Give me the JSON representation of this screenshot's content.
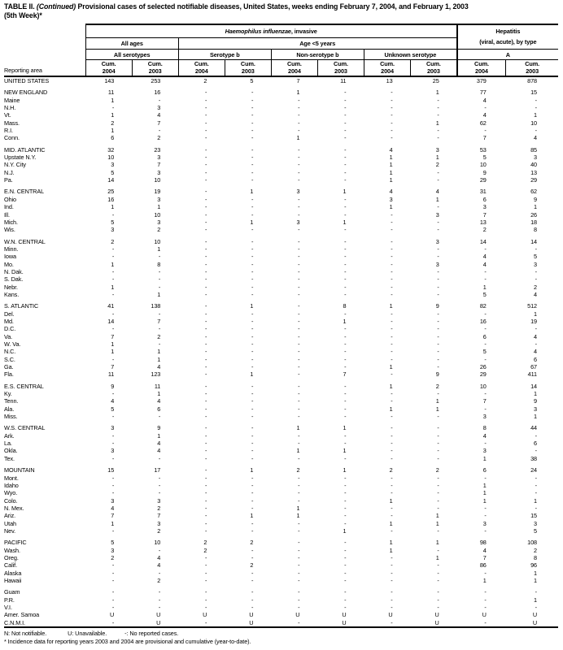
{
  "title": {
    "part1": "TABLE II. ",
    "part2": "(Continued)",
    "part3": " Provisional cases of selected notifiable diseases, United States, weeks ending February 7, 2004, and February 1, 2003",
    "line2": "(5th Week)*"
  },
  "header": {
    "reporting_area": "Reporting area",
    "group1_italic": "Haemophilus influenzae",
    "group1_rest": ", invasive",
    "hepatitis_line1": "Hepatitis",
    "hepatitis_line2": "(viral, acute), by type",
    "all_ages": "All ages",
    "age_under5": "Age <5 years",
    "all_serotypes": "All serotypes",
    "serotype_b": "Serotype b",
    "non_serotype_b": "Non-serotype b",
    "unknown_serotype": "Unknown serotype",
    "hep_a": "A",
    "cum": "Cum.",
    "year1": "2004",
    "year2": "2003"
  },
  "sections": [
    {
      "rows": [
        {
          "label": "UNITED STATES",
          "values": [
            "143",
            "253",
            "2",
            "5",
            "7",
            "11",
            "13",
            "25",
            "379",
            "878"
          ]
        }
      ]
    },
    {
      "rows": [
        {
          "label": "NEW ENGLAND",
          "values": [
            "11",
            "16",
            "-",
            "-",
            "1",
            "-",
            "-",
            "1",
            "77",
            "15"
          ]
        },
        {
          "label": "Maine",
          "values": [
            "1",
            "-",
            "-",
            "-",
            "-",
            "-",
            "-",
            "-",
            "4",
            "-"
          ]
        },
        {
          "label": "N.H.",
          "values": [
            "-",
            "3",
            "-",
            "-",
            "-",
            "-",
            "-",
            "-",
            "-",
            "-"
          ]
        },
        {
          "label": "Vt.",
          "values": [
            "1",
            "4",
            "-",
            "-",
            "-",
            "-",
            "-",
            "-",
            "4",
            "1"
          ]
        },
        {
          "label": "Mass.",
          "values": [
            "2",
            "7",
            "-",
            "-",
            "-",
            "-",
            "-",
            "1",
            "62",
            "10"
          ]
        },
        {
          "label": "R.I.",
          "values": [
            "1",
            "-",
            "-",
            "-",
            "-",
            "-",
            "-",
            "-",
            "-",
            "-"
          ]
        },
        {
          "label": "Conn.",
          "values": [
            "6",
            "2",
            "-",
            "-",
            "1",
            "-",
            "-",
            "-",
            "7",
            "4"
          ]
        }
      ]
    },
    {
      "rows": [
        {
          "label": "MID. ATLANTIC",
          "values": [
            "32",
            "23",
            "-",
            "-",
            "-",
            "-",
            "4",
            "3",
            "53",
            "85"
          ]
        },
        {
          "label": "Upstate N.Y.",
          "values": [
            "10",
            "3",
            "-",
            "-",
            "-",
            "-",
            "1",
            "1",
            "5",
            "3"
          ]
        },
        {
          "label": "N.Y. City",
          "values": [
            "3",
            "7",
            "-",
            "-",
            "-",
            "-",
            "1",
            "2",
            "10",
            "40"
          ]
        },
        {
          "label": "N.J.",
          "values": [
            "5",
            "3",
            "-",
            "-",
            "-",
            "-",
            "1",
            "-",
            "9",
            "13"
          ]
        },
        {
          "label": "Pa.",
          "values": [
            "14",
            "10",
            "-",
            "-",
            "-",
            "-",
            "1",
            "-",
            "29",
            "29"
          ]
        }
      ]
    },
    {
      "rows": [
        {
          "label": "E.N. CENTRAL",
          "values": [
            "25",
            "19",
            "-",
            "1",
            "3",
            "1",
            "4",
            "4",
            "31",
            "62"
          ]
        },
        {
          "label": "Ohio",
          "values": [
            "16",
            "3",
            "-",
            "-",
            "-",
            "-",
            "3",
            "1",
            "6",
            "9"
          ]
        },
        {
          "label": "Ind.",
          "values": [
            "1",
            "1",
            "-",
            "-",
            "-",
            "-",
            "1",
            "-",
            "3",
            "1"
          ]
        },
        {
          "label": "Ill.",
          "values": [
            "-",
            "10",
            "-",
            "-",
            "-",
            "-",
            "-",
            "3",
            "7",
            "26"
          ]
        },
        {
          "label": "Mich.",
          "values": [
            "5",
            "3",
            "-",
            "1",
            "3",
            "1",
            "-",
            "-",
            "13",
            "18"
          ]
        },
        {
          "label": "Wis.",
          "values": [
            "3",
            "2",
            "-",
            "-",
            "-",
            "-",
            "-",
            "-",
            "2",
            "8"
          ]
        }
      ]
    },
    {
      "rows": [
        {
          "label": "W.N. CENTRAL",
          "values": [
            "2",
            "10",
            "-",
            "-",
            "-",
            "-",
            "-",
            "3",
            "14",
            "14"
          ]
        },
        {
          "label": "Minn.",
          "values": [
            "-",
            "1",
            "-",
            "-",
            "-",
            "-",
            "-",
            "-",
            "-",
            "-"
          ]
        },
        {
          "label": "Iowa",
          "values": [
            "-",
            "-",
            "-",
            "-",
            "-",
            "-",
            "-",
            "-",
            "4",
            "5"
          ]
        },
        {
          "label": "Mo.",
          "values": [
            "1",
            "8",
            "-",
            "-",
            "-",
            "-",
            "-",
            "3",
            "4",
            "3"
          ]
        },
        {
          "label": "N. Dak.",
          "values": [
            "-",
            "-",
            "-",
            "-",
            "-",
            "-",
            "-",
            "-",
            "-",
            "-"
          ]
        },
        {
          "label": "S. Dak.",
          "values": [
            "-",
            "-",
            "-",
            "-",
            "-",
            "-",
            "-",
            "-",
            "-",
            "-"
          ]
        },
        {
          "label": "Nebr.",
          "values": [
            "1",
            "-",
            "-",
            "-",
            "-",
            "-",
            "-",
            "-",
            "1",
            "2"
          ]
        },
        {
          "label": "Kans.",
          "values": [
            "-",
            "1",
            "-",
            "-",
            "-",
            "-",
            "-",
            "-",
            "5",
            "4"
          ]
        }
      ]
    },
    {
      "rows": [
        {
          "label": "S. ATLANTIC",
          "values": [
            "41",
            "138",
            "-",
            "1",
            "-",
            "8",
            "1",
            "9",
            "82",
            "512"
          ]
        },
        {
          "label": "Del.",
          "values": [
            "-",
            "-",
            "-",
            "-",
            "-",
            "-",
            "-",
            "-",
            "-",
            "1"
          ]
        },
        {
          "label": "Md.",
          "values": [
            "14",
            "7",
            "-",
            "-",
            "-",
            "1",
            "-",
            "-",
            "16",
            "19"
          ]
        },
        {
          "label": "D.C.",
          "values": [
            "-",
            "-",
            "-",
            "-",
            "-",
            "-",
            "-",
            "-",
            "-",
            "-"
          ]
        },
        {
          "label": "Va.",
          "values": [
            "7",
            "2",
            "-",
            "-",
            "-",
            "-",
            "-",
            "-",
            "6",
            "4"
          ]
        },
        {
          "label": "W. Va.",
          "values": [
            "1",
            "-",
            "-",
            "-",
            "-",
            "-",
            "-",
            "-",
            "-",
            "-"
          ]
        },
        {
          "label": "N.C.",
          "values": [
            "1",
            "1",
            "-",
            "-",
            "-",
            "-",
            "-",
            "-",
            "5",
            "4"
          ]
        },
        {
          "label": "S.C.",
          "values": [
            "-",
            "1",
            "-",
            "-",
            "-",
            "-",
            "-",
            "-",
            "-",
            "6"
          ]
        },
        {
          "label": "Ga.",
          "values": [
            "7",
            "4",
            "-",
            "-",
            "-",
            "-",
            "1",
            "-",
            "26",
            "67"
          ]
        },
        {
          "label": "Fla.",
          "values": [
            "11",
            "123",
            "-",
            "1",
            "-",
            "7",
            "-",
            "9",
            "29",
            "411"
          ]
        }
      ]
    },
    {
      "rows": [
        {
          "label": "E.S. CENTRAL",
          "values": [
            "9",
            "11",
            "-",
            "-",
            "-",
            "-",
            "1",
            "2",
            "10",
            "14"
          ]
        },
        {
          "label": "Ky.",
          "values": [
            "-",
            "1",
            "-",
            "-",
            "-",
            "-",
            "-",
            "-",
            "-",
            "1"
          ]
        },
        {
          "label": "Tenn.",
          "values": [
            "4",
            "4",
            "-",
            "-",
            "-",
            "-",
            "-",
            "1",
            "7",
            "9"
          ]
        },
        {
          "label": "Ala.",
          "values": [
            "5",
            "6",
            "-",
            "-",
            "-",
            "-",
            "1",
            "1",
            "-",
            "3"
          ]
        },
        {
          "label": "Miss.",
          "values": [
            "-",
            "-",
            "-",
            "-",
            "-",
            "-",
            "-",
            "-",
            "3",
            "1"
          ]
        }
      ]
    },
    {
      "rows": [
        {
          "label": "W.S. CENTRAL",
          "values": [
            "3",
            "9",
            "-",
            "-",
            "1",
            "1",
            "-",
            "-",
            "8",
            "44"
          ]
        },
        {
          "label": "Ark.",
          "values": [
            "-",
            "1",
            "-",
            "-",
            "-",
            "-",
            "-",
            "-",
            "4",
            "-"
          ]
        },
        {
          "label": "La.",
          "values": [
            "-",
            "4",
            "-",
            "-",
            "-",
            "-",
            "-",
            "-",
            "-",
            "6"
          ]
        },
        {
          "label": "Okla.",
          "values": [
            "3",
            "4",
            "-",
            "-",
            "1",
            "1",
            "-",
            "-",
            "3",
            "-"
          ]
        },
        {
          "label": "Tex.",
          "values": [
            "-",
            "-",
            "-",
            "-",
            "-",
            "-",
            "-",
            "-",
            "1",
            "38"
          ]
        }
      ]
    },
    {
      "rows": [
        {
          "label": "MOUNTAIN",
          "values": [
            "15",
            "17",
            "-",
            "1",
            "2",
            "1",
            "2",
            "2",
            "6",
            "24"
          ]
        },
        {
          "label": "Mont.",
          "values": [
            "-",
            "-",
            "-",
            "-",
            "-",
            "-",
            "-",
            "-",
            "-",
            "-"
          ]
        },
        {
          "label": "Idaho",
          "values": [
            "-",
            "-",
            "-",
            "-",
            "-",
            "-",
            "-",
            "-",
            "1",
            "-"
          ]
        },
        {
          "label": "Wyo.",
          "values": [
            "-",
            "-",
            "-",
            "-",
            "-",
            "-",
            "-",
            "-",
            "1",
            "-"
          ]
        },
        {
          "label": "Colo.",
          "values": [
            "3",
            "3",
            "-",
            "-",
            "-",
            "-",
            "1",
            "-",
            "1",
            "1"
          ]
        },
        {
          "label": "N. Mex.",
          "values": [
            "4",
            "2",
            "-",
            "-",
            "1",
            "-",
            "-",
            "-",
            "-",
            "-"
          ]
        },
        {
          "label": "Ariz.",
          "values": [
            "7",
            "7",
            "-",
            "1",
            "1",
            "-",
            "-",
            "1",
            "-",
            "15"
          ]
        },
        {
          "label": "Utah",
          "values": [
            "1",
            "3",
            "-",
            "-",
            "-",
            "-",
            "1",
            "1",
            "3",
            "3"
          ]
        },
        {
          "label": "Nev.",
          "values": [
            "-",
            "2",
            "-",
            "-",
            "-",
            "1",
            "-",
            "-",
            "-",
            "5"
          ]
        }
      ]
    },
    {
      "rows": [
        {
          "label": "PACIFIC",
          "values": [
            "5",
            "10",
            "2",
            "2",
            "-",
            "-",
            "1",
            "1",
            "98",
            "108"
          ]
        },
        {
          "label": "Wash.",
          "values": [
            "3",
            "-",
            "2",
            "-",
            "-",
            "-",
            "1",
            "-",
            "4",
            "2"
          ]
        },
        {
          "label": "Oreg.",
          "values": [
            "2",
            "4",
            "-",
            "-",
            "-",
            "-",
            "-",
            "1",
            "7",
            "8"
          ]
        },
        {
          "label": "Calif.",
          "values": [
            "-",
            "4",
            "-",
            "2",
            "-",
            "-",
            "-",
            "-",
            "86",
            "96"
          ]
        },
        {
          "label": "Alaska",
          "values": [
            "-",
            "-",
            "-",
            "-",
            "-",
            "-",
            "-",
            "-",
            "-",
            "1"
          ]
        },
        {
          "label": "Hawaii",
          "values": [
            "-",
            "2",
            "-",
            "-",
            "-",
            "-",
            "-",
            "-",
            "1",
            "1"
          ]
        }
      ]
    },
    {
      "rows": [
        {
          "label": "Guam",
          "values": [
            "-",
            "-",
            "-",
            "-",
            "-",
            "-",
            "-",
            "-",
            "-",
            "-"
          ]
        },
        {
          "label": "P.R.",
          "values": [
            "-",
            "-",
            "-",
            "-",
            "-",
            "-",
            "-",
            "-",
            "-",
            "1"
          ]
        },
        {
          "label": "V.I.",
          "values": [
            "-",
            "-",
            "-",
            "-",
            "-",
            "-",
            "-",
            "-",
            "-",
            "-"
          ]
        },
        {
          "label": "Amer. Samoa",
          "values": [
            "U",
            "U",
            "U",
            "U",
            "U",
            "U",
            "U",
            "U",
            "U",
            "U"
          ]
        },
        {
          "label": "C.N.M.I.",
          "values": [
            "-",
            "U",
            "-",
            "U",
            "-",
            "U",
            "-",
            "U",
            "-",
            "U"
          ]
        }
      ]
    }
  ],
  "footnotes": {
    "legend1": "N: Not notifiable.",
    "legend2": "U: Unavailable.",
    "legend3": "-: No reported cases.",
    "note": "* Incidence data for reporting years 2003 and 2004 are provisional and cumulative (year-to-date)."
  }
}
